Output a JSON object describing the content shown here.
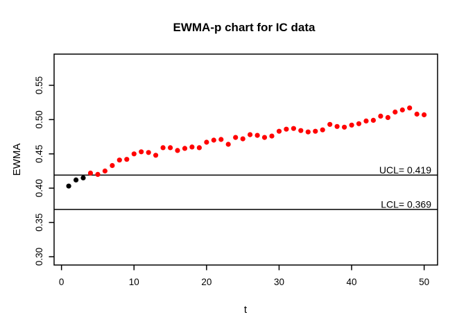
{
  "chart_data": {
    "type": "scatter",
    "title": "EWMA-p chart for IC data",
    "xlabel": "t",
    "ylabel": "EWMA",
    "x_ticks": [
      0,
      10,
      20,
      30,
      40,
      50
    ],
    "y_ticks": [
      "0.30",
      "0.35",
      "0.40",
      "0.45",
      "0.50",
      "0.55"
    ],
    "xlim": [
      -1.02,
      51.85
    ],
    "ylim": [
      0.2879,
      0.5955
    ],
    "grid": false,
    "legend": "none",
    "frame_color": "#000000",
    "control_limits": [
      {
        "name": "UCL",
        "label": "UCL= 0.419",
        "value": 0.419
      },
      {
        "name": "LCL",
        "label": "LCL= 0.369",
        "value": 0.369
      }
    ],
    "series": [
      {
        "name": "initial-points",
        "color": "#000000",
        "x": [
          1,
          2,
          3
        ],
        "y": [
          0.403,
          0.412,
          0.415
        ]
      },
      {
        "name": "ewma-points",
        "color": "#ff0000",
        "x": [
          4,
          5,
          6,
          7,
          8,
          9,
          10,
          11,
          12,
          13,
          14,
          15,
          16,
          17,
          18,
          19,
          20,
          21,
          22,
          23,
          24,
          25,
          26,
          27,
          28,
          29,
          30,
          31,
          32,
          33,
          34,
          35,
          36,
          37,
          38,
          39,
          40,
          41,
          42,
          43,
          44,
          45,
          46,
          47,
          48,
          49,
          50
        ],
        "y": [
          0.422,
          0.42,
          0.425,
          0.433,
          0.441,
          0.442,
          0.45,
          0.453,
          0.452,
          0.448,
          0.459,
          0.459,
          0.455,
          0.458,
          0.46,
          0.459,
          0.467,
          0.47,
          0.471,
          0.464,
          0.474,
          0.472,
          0.478,
          0.477,
          0.474,
          0.476,
          0.483,
          0.486,
          0.487,
          0.484,
          0.482,
          0.483,
          0.485,
          0.493,
          0.49,
          0.489,
          0.492,
          0.494,
          0.498,
          0.499,
          0.505,
          0.503,
          0.511,
          0.514,
          0.517,
          0.508,
          0.507
        ]
      }
    ]
  }
}
